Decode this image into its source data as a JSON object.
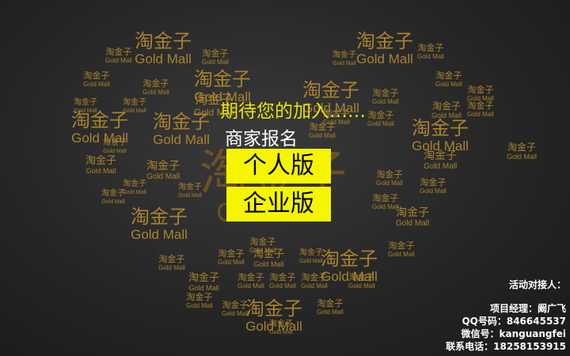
{
  "logo": {
    "chinese": "淘金子",
    "english": "Gold Mall"
  },
  "headline": "期待您的加入……",
  "subtitle": "商家报名",
  "buttons": {
    "personal": "个人版",
    "enterprise": "企业版"
  },
  "contact": {
    "title": "活动对接人：",
    "manager": "项目经理：阚广飞",
    "qq": "QQ号码：846645537",
    "wechat": "微信号：kanguangfei",
    "phone": "联系电话：18258153915"
  }
}
